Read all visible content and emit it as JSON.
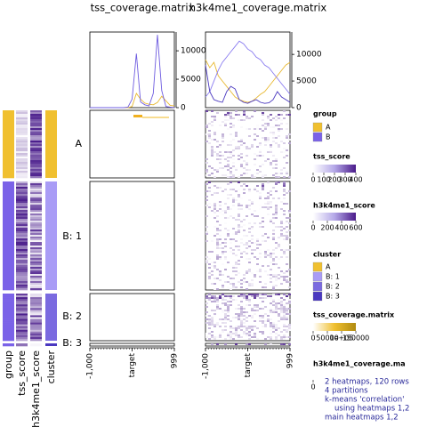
{
  "chart_data": [
    {
      "type": "line",
      "title": "tss_coverage.matrix",
      "x": [
        -1000,
        -900,
        -800,
        -700,
        -600,
        -500,
        -400,
        -300,
        -200,
        -100,
        0,
        100,
        200,
        300,
        400,
        500,
        600,
        700,
        800,
        900,
        999
      ],
      "xlim": [
        -1000,
        999
      ],
      "xticks": [
        {
          "value": -1000,
          "label": "-1,000"
        },
        {
          "value": 0,
          "label": "target"
        },
        999
      ],
      "series": [
        {
          "color": "#e8b830",
          "values": [
            0,
            0,
            0,
            0,
            0,
            0,
            0,
            0,
            0,
            0,
            200,
            2500,
            1500,
            800,
            600,
            500,
            900,
            2000,
            1200,
            400,
            300
          ]
        },
        {
          "color": "#6e5ce0",
          "values": [
            0,
            0,
            0,
            0,
            0,
            0,
            0,
            0,
            0,
            100,
            1500,
            9500,
            1000,
            500,
            300,
            2500,
            12800,
            3000,
            200,
            100,
            0
          ]
        }
      ],
      "ylim": [
        0,
        13300
      ],
      "yticks": [
        0,
        5000,
        10000
      ]
    },
    {
      "type": "line",
      "title": "h3k4me1_coverage.matrix",
      "x": [
        -1000,
        -900,
        -800,
        -700,
        -600,
        -500,
        -400,
        -300,
        -200,
        -100,
        0,
        100,
        200,
        300,
        400,
        500,
        600,
        700,
        800,
        900,
        999
      ],
      "xlim": [
        -1000,
        999
      ],
      "xticks": [
        {
          "value": -1000,
          "label": "-1,000"
        },
        {
          "value": 0,
          "label": "target"
        },
        999
      ],
      "series": [
        {
          "color": "#e8b830",
          "values": [
            9000,
            7500,
            8500,
            6000,
            5000,
            4000,
            3000,
            2000,
            1500,
            1200,
            1000,
            1200,
            1800,
            2500,
            3000,
            4000,
            5000,
            6000,
            7000,
            8000,
            8500
          ]
        },
        {
          "color": "#8a7cf0",
          "values": [
            2000,
            3000,
            5000,
            7000,
            8500,
            9500,
            10500,
            11500,
            12500,
            12000,
            11000,
            10500,
            9500,
            9000,
            8000,
            7500,
            6500,
            5500,
            4500,
            3500,
            2500
          ]
        },
        {
          "color": "#4a38c0",
          "values": [
            8000,
            3000,
            1500,
            1200,
            1000,
            3000,
            4000,
            3500,
            1500,
            1000,
            800,
            1200,
            1500,
            1000,
            800,
            900,
            1500,
            3000,
            2000,
            1500,
            1000
          ]
        }
      ],
      "ylim": [
        0,
        14200
      ],
      "yticks": [
        0,
        5000,
        10000
      ]
    }
  ],
  "row_labels": [
    "A",
    "B: 1",
    "B: 2",
    "B: 3"
  ],
  "annotation_labels": [
    "group",
    "tss_score",
    "h3k4me1_score",
    "cluster"
  ],
  "legends": {
    "group": {
      "title": "group",
      "items": [
        "A",
        "B"
      ],
      "colors": [
        "#f0c030",
        "#7a62e8"
      ]
    },
    "tss_score": {
      "title": "tss_score",
      "ticks": [
        0,
        100,
        200,
        300,
        400
      ]
    },
    "h3k4me1_score": {
      "title": "h3k4me1_score",
      "ticks": [
        0,
        200,
        400,
        600
      ]
    },
    "cluster": {
      "title": "cluster",
      "items": [
        "A",
        "B: 1",
        "B: 2",
        "B: 3"
      ],
      "colors": [
        "#f0c030",
        "#a99cf6",
        "#7a6ae0",
        "#4a38c0"
      ]
    },
    "tss_coverage": {
      "title": "tss_coverage.matrix",
      "ticks": [
        "0",
        "50000",
        "1e+05",
        "150000"
      ]
    },
    "h3k4me1_coverage": {
      "title": "h3k4me1_coverage.ma",
      "ticks": [
        "0"
      ]
    }
  },
  "notes": [
    "2 heatmaps, 120 rows",
    "4 partitions",
    "k-means 'correlation'",
    "using heatmaps 1,2",
    "main heatmaps 1,2"
  ]
}
